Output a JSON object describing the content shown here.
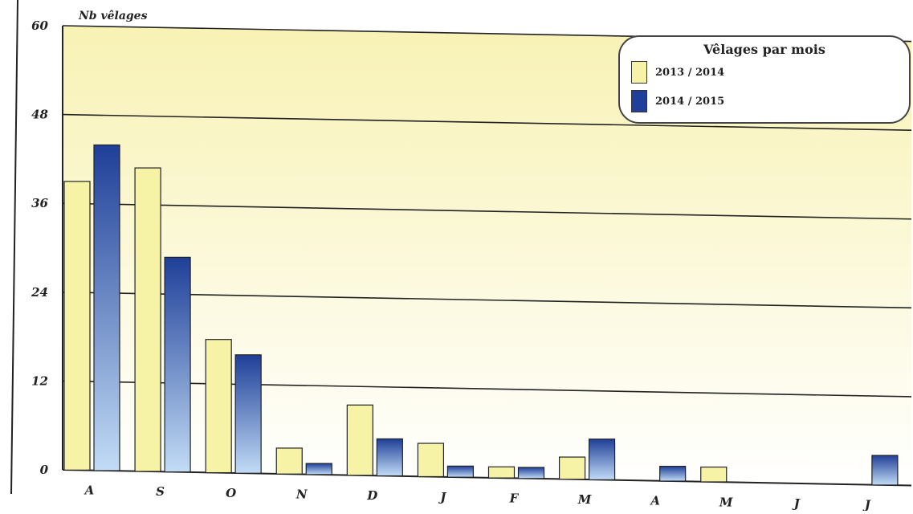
{
  "chart_data": {
    "type": "bar",
    "ylabel": "Nb vêlages",
    "ylim": [
      0,
      60
    ],
    "yticks": [
      "0",
      "12",
      "24",
      "36",
      "48",
      "60"
    ],
    "categories": [
      "A",
      "S",
      "O",
      "N",
      "D",
      "J",
      "F",
      "M",
      "A",
      "M",
      "J",
      "J"
    ],
    "series": [
      {
        "name": "2013 / 2014",
        "values": [
          39,
          41,
          18,
          3.5,
          9.5,
          4.5,
          1.5,
          3,
          0,
          2,
          0,
          0
        ]
      },
      {
        "name": "2014 / 2015",
        "values": [
          44,
          29,
          16,
          1.5,
          5,
          1.5,
          1.5,
          5.5,
          2,
          0,
          0,
          4
        ]
      }
    ],
    "legend": {
      "title": "Vêlages par mois",
      "position": "top-right"
    },
    "grid": true,
    "colors": {
      "series1": "#f7f3a6",
      "series2_top": "#1f3f98",
      "series2_bottom": "#c2dcf6",
      "bg_top": "#f8f2b4",
      "bg_bottom": "#ffffff",
      "grid": "#222222"
    }
  }
}
